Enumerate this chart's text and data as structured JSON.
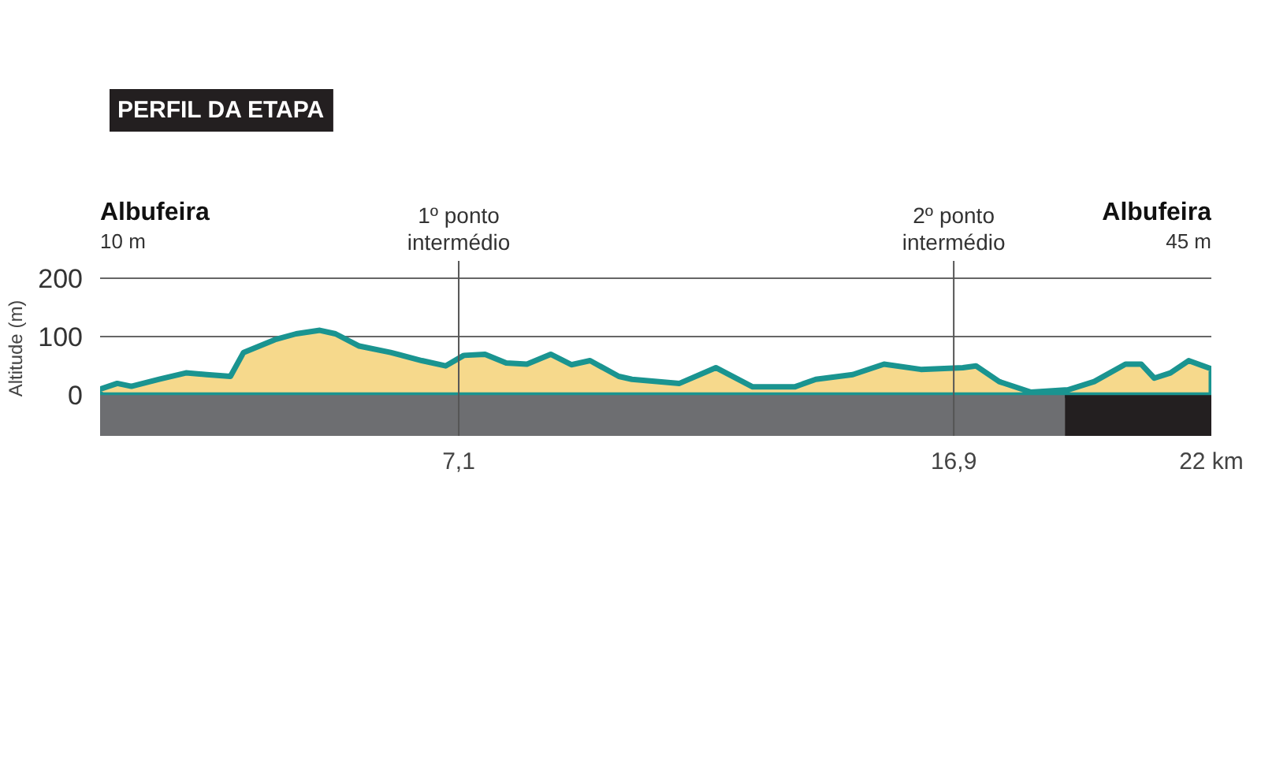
{
  "chart_data": {
    "type": "area",
    "title": "PERFIL DA ETAPA",
    "ylabel": "Altitude (m)",
    "x": [
      0,
      0.34,
      0.62,
      1.17,
      1.7,
      2.11,
      2.58,
      2.84,
      3.46,
      3.88,
      4.35,
      4.66,
      5.13,
      5.75,
      6.37,
      6.84,
      7.2,
      7.62,
      8.04,
      8.45,
      8.92,
      9.33,
      9.7,
      10.27,
      10.53,
      11.47,
      12.19,
      12.92,
      13.75,
      14.17,
      14.9,
      15.52,
      16.25,
      17.08,
      17.34,
      17.8,
      18.43,
      19.16,
      19.68,
      20.3,
      20.61,
      20.87,
      21.19,
      21.55,
      22
    ],
    "series": [
      {
        "color": "#1a9490",
        "values": [
          10,
          20,
          15,
          27,
          38,
          35,
          32,
          73,
          95,
          105,
          111,
          105,
          84,
          73,
          59,
          50,
          68,
          70,
          55,
          53,
          70,
          52,
          59,
          32,
          27,
          20,
          47,
          14,
          14,
          27,
          35,
          53,
          44,
          47,
          50,
          23,
          5,
          9,
          23,
          53,
          53,
          29,
          38,
          59,
          45
        ]
      }
    ],
    "xlim": [
      0,
      22
    ],
    "ylim": [
      -70,
      230
    ],
    "xticks": [
      {
        "value": 7.1,
        "label": "7,1"
      },
      {
        "value": 16.9,
        "label": "16,9"
      },
      {
        "value": 22,
        "label": "22 km"
      }
    ],
    "yticks": [
      0,
      100,
      200
    ],
    "grid": "y",
    "ref_lines": [
      {
        "axis": "x",
        "value": 7.1,
        "label": "1º ponto intermédio"
      },
      {
        "axis": "x",
        "value": 16.9,
        "label": "2º ponto intermédio"
      }
    ],
    "bands": [
      {
        "axis": "x",
        "from": 0,
        "to": 19.1,
        "color": "#6d6e71"
      },
      {
        "axis": "x",
        "from": 19.1,
        "to": 22,
        "color": "#231f20"
      }
    ],
    "annotations": [
      "Albufeira",
      "10 m",
      "Albufeira",
      "45 m"
    ]
  }
}
